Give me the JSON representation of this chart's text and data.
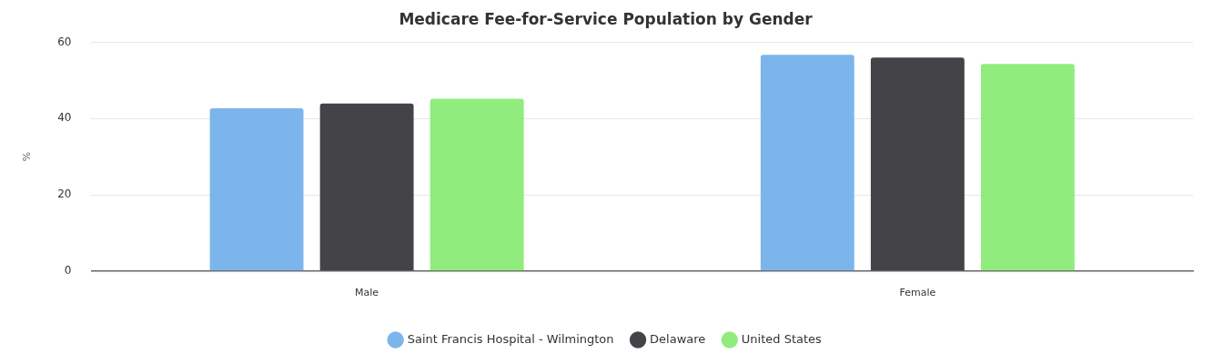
{
  "chart_data": {
    "type": "bar",
    "title": "Medicare Fee-for-Service Population by Gender",
    "ylabel": "%",
    "categories": [
      "Male",
      "Female"
    ],
    "series": [
      {
        "name": "Saint Francis Hospital - Wilmington",
        "color": "#7cb5ec",
        "values": [
          42.7,
          56.7
        ]
      },
      {
        "name": "Delaware",
        "color": "#434348",
        "values": [
          43.9,
          56.0
        ]
      },
      {
        "name": "United States",
        "color": "#90ed7d",
        "values": [
          45.2,
          54.3
        ]
      }
    ],
    "ylim": [
      0,
      60
    ],
    "yticks": [
      0,
      20,
      40,
      60
    ],
    "grid": "y",
    "legend": "bottom"
  }
}
